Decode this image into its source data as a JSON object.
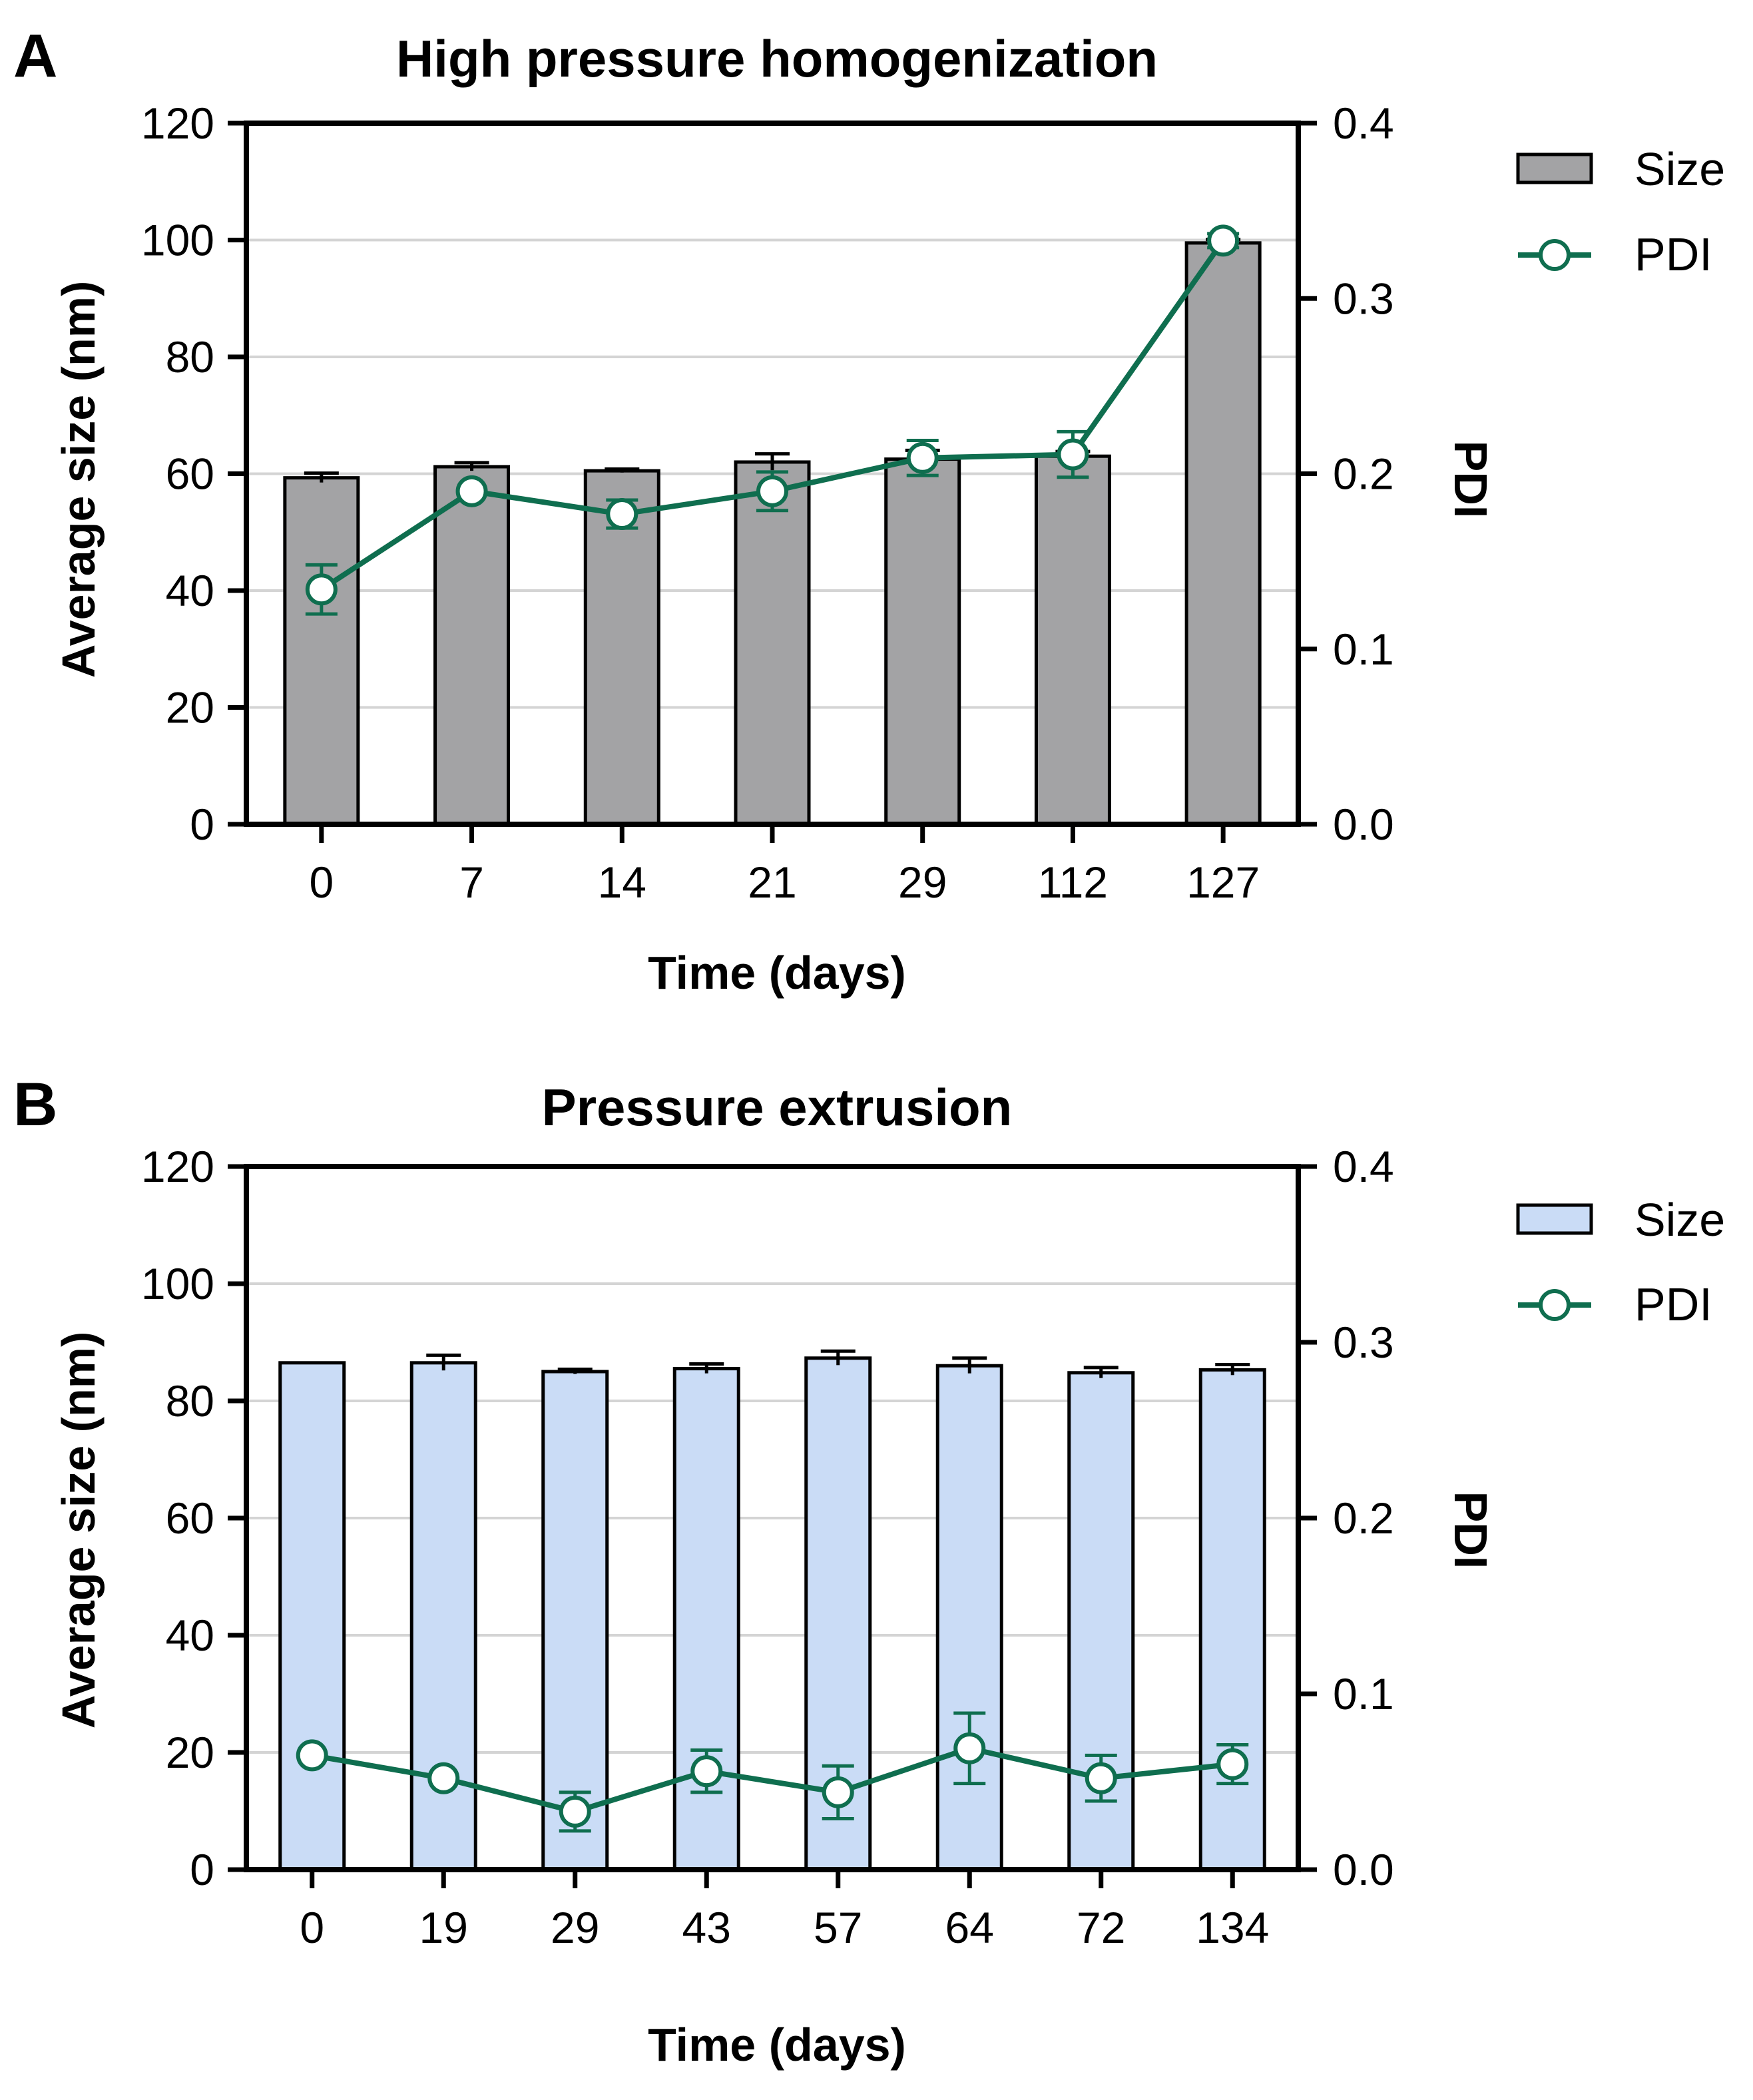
{
  "colors": {
    "pdi_line": "#0f6e4f",
    "bar_a": "#a3a3a5",
    "bar_b": "#cadcf6",
    "grid": "#d4d4d4",
    "axis": "#000000"
  },
  "chart_data": [
    {
      "type": "bar",
      "panel_label": "A",
      "title": "High pressure homogenization",
      "xlabel": "Time (days)",
      "ylabel": "Average size (nm)",
      "y2label": "PDI",
      "categories": [
        "0",
        "7",
        "14",
        "21",
        "29",
        "112",
        "127"
      ],
      "ylim": [
        0,
        120
      ],
      "y2lim": [
        0,
        0.4
      ],
      "yticks": [
        "0",
        "20",
        "40",
        "60",
        "80",
        "100",
        "120"
      ],
      "y2ticks": [
        "0.0",
        "0.1",
        "0.2",
        "0.3",
        "0.4"
      ],
      "grid": true,
      "legend_position": "right",
      "legend": [
        "Size",
        "PDI"
      ],
      "series": [
        {
          "name": "Size",
          "axis": "left",
          "kind": "bar",
          "values": [
            59.3,
            61.2,
            60.5,
            62.0,
            62.5,
            63.0,
            99.5
          ],
          "errors": [
            0.8,
            0.7,
            0.3,
            1.4,
            1.5,
            0.8,
            0.6
          ]
        },
        {
          "name": "PDI",
          "axis": "right",
          "kind": "line",
          "values": [
            0.134,
            0.19,
            0.177,
            0.19,
            0.209,
            0.211,
            0.333
          ],
          "errors": [
            0.014,
            0.0,
            0.008,
            0.011,
            0.01,
            0.013,
            0.004
          ]
        }
      ]
    },
    {
      "type": "bar",
      "panel_label": "B",
      "title": "Pressure extrusion",
      "xlabel": "Time (days)",
      "ylabel": "Average size (nm)",
      "y2label": "PDI",
      "categories": [
        "0",
        "19",
        "29",
        "43",
        "57",
        "64",
        "72",
        "134"
      ],
      "ylim": [
        0,
        120
      ],
      "y2lim": [
        0,
        0.4
      ],
      "yticks": [
        "0",
        "20",
        "40",
        "60",
        "80",
        "100",
        "120"
      ],
      "y2ticks": [
        "0.0",
        "0.1",
        "0.2",
        "0.3",
        "0.4"
      ],
      "grid": true,
      "legend_position": "right",
      "legend": [
        "Size",
        "PDI"
      ],
      "series": [
        {
          "name": "Size",
          "axis": "left",
          "kind": "bar",
          "values": [
            86.5,
            86.5,
            85.0,
            85.5,
            87.3,
            86.0,
            84.8,
            85.3
          ],
          "errors": [
            0.0,
            1.3,
            0.4,
            0.8,
            1.2,
            1.3,
            0.9,
            0.9
          ]
        },
        {
          "name": "PDI",
          "axis": "right",
          "kind": "line",
          "values": [
            0.065,
            0.052,
            0.033,
            0.056,
            0.044,
            0.069,
            0.052,
            0.06
          ],
          "errors": [
            0.0,
            0.0,
            0.011,
            0.012,
            0.015,
            0.02,
            0.013,
            0.011
          ]
        }
      ]
    }
  ]
}
